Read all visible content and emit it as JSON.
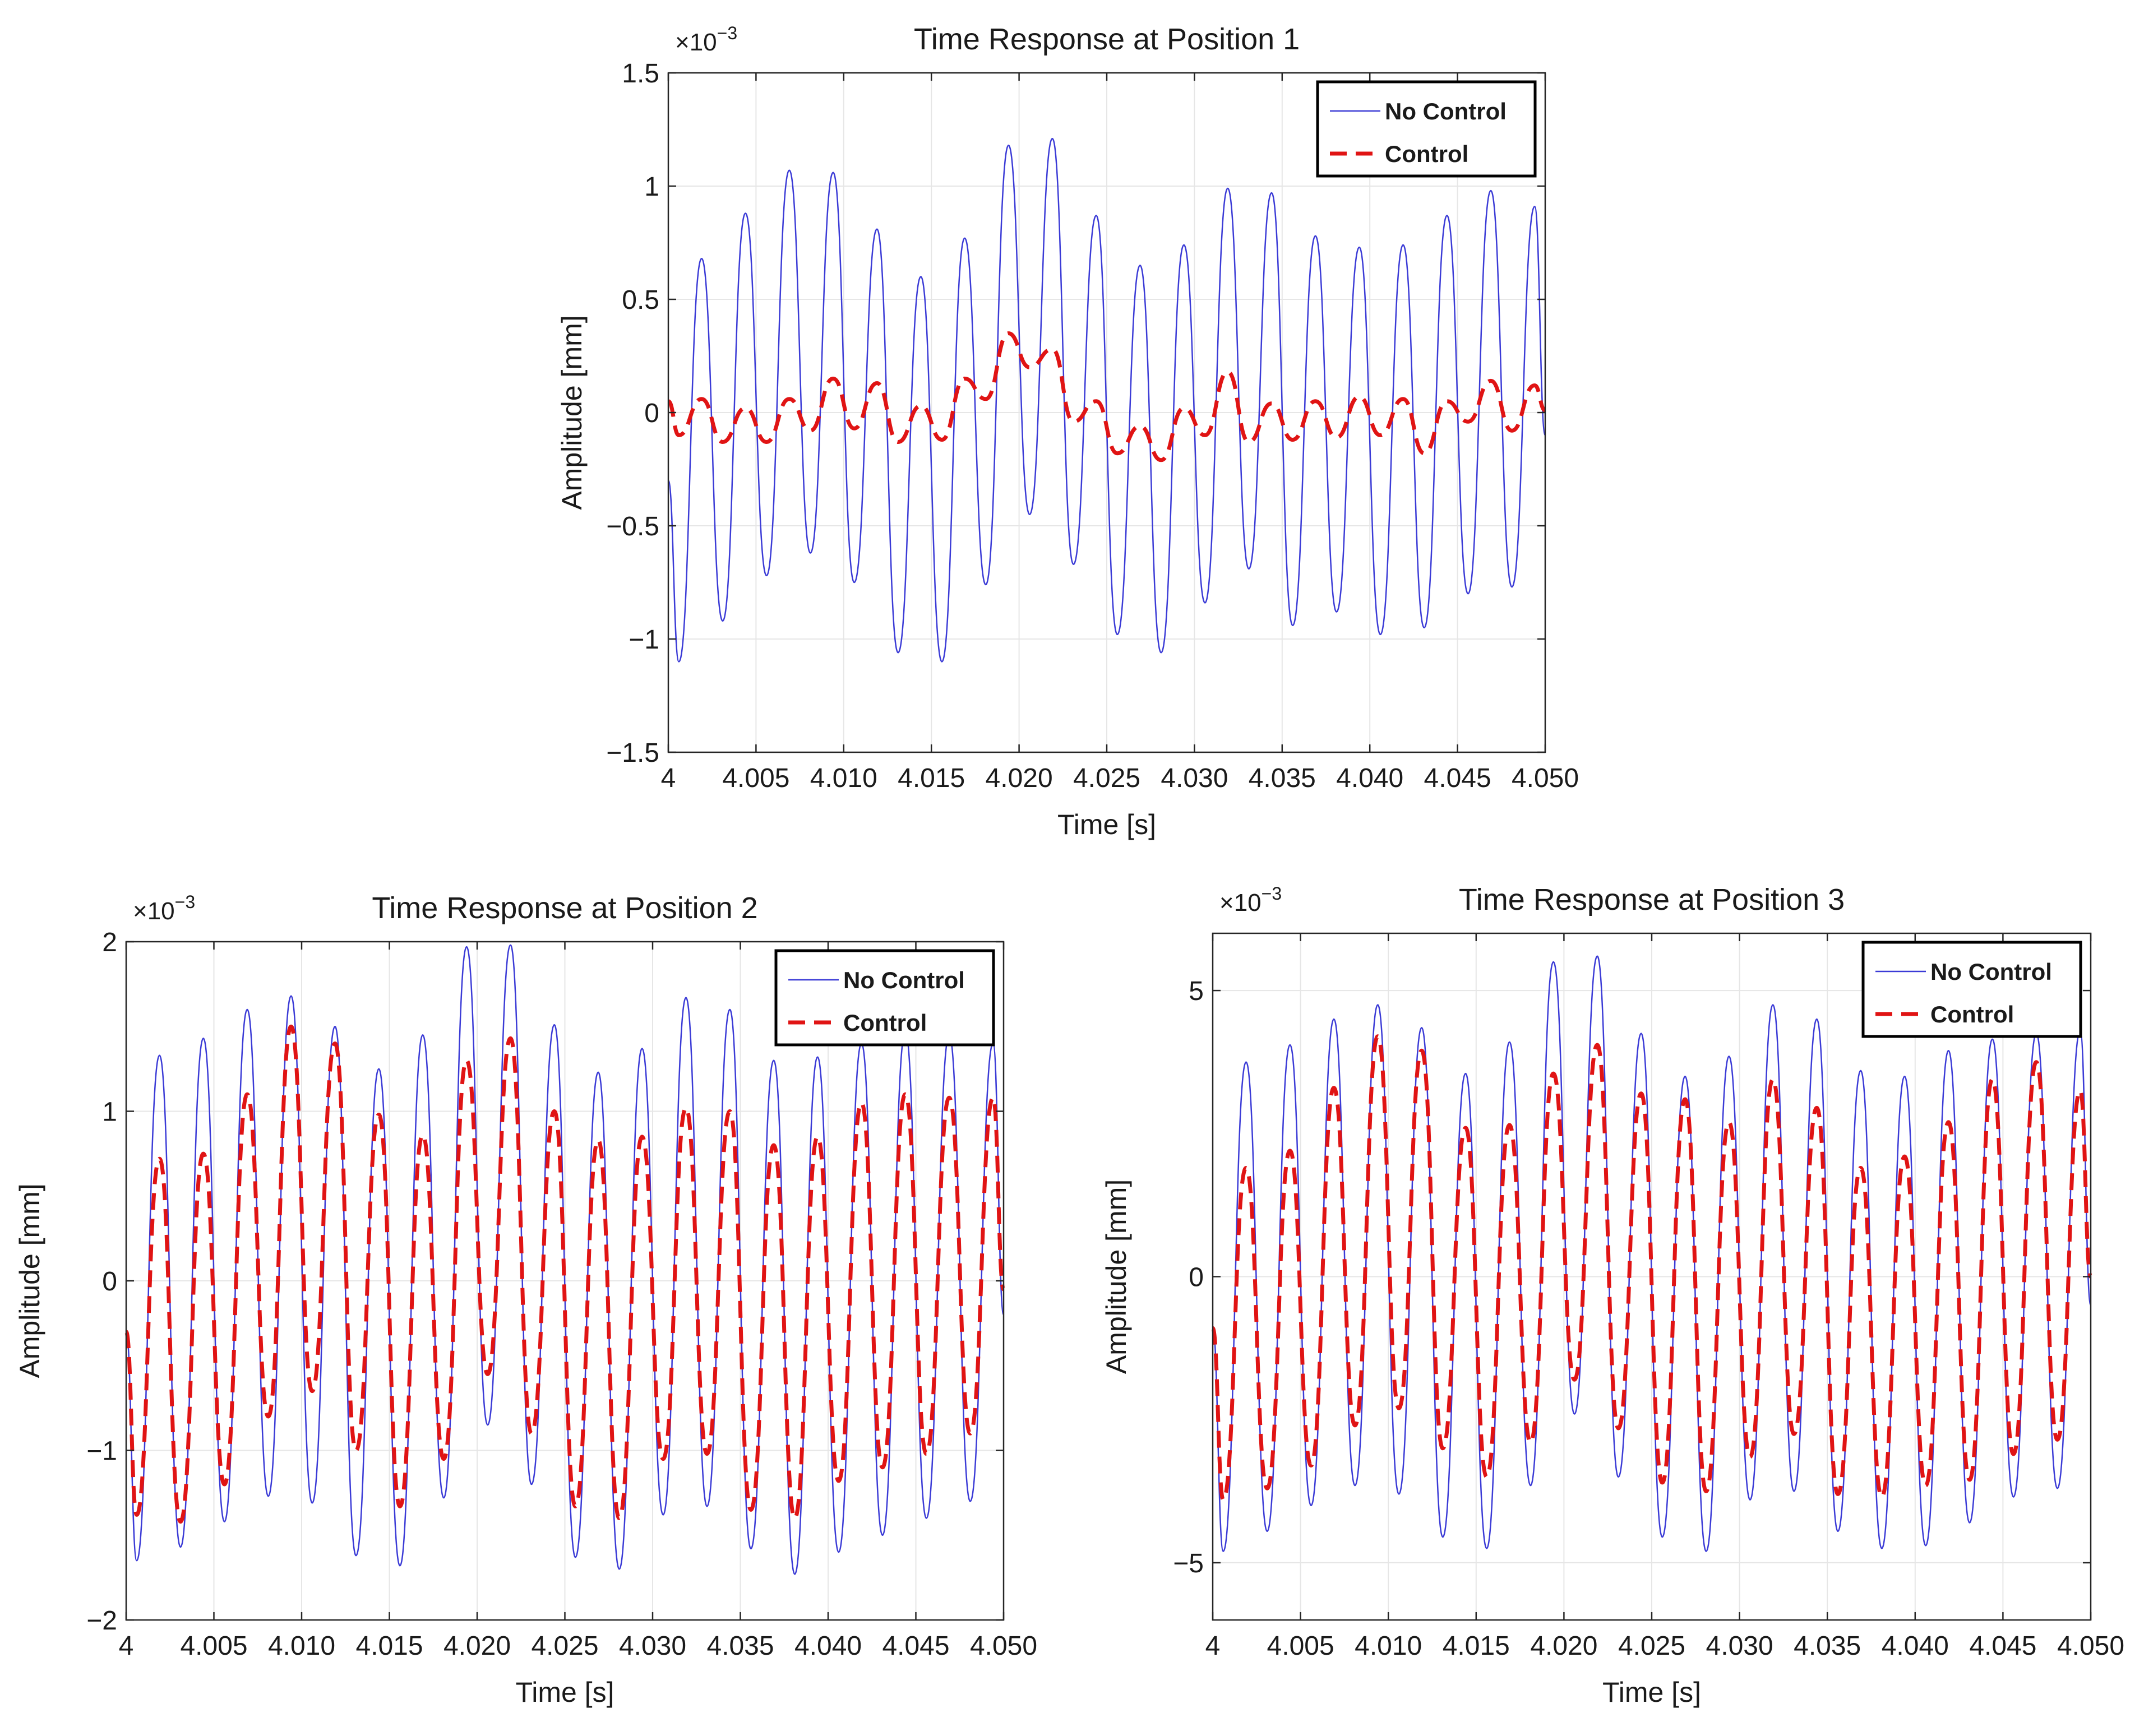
{
  "chart_data": [
    {
      "type": "line",
      "title": "Time Response at Position 1",
      "xlabel": "Time [s]",
      "ylabel": "Amplitude [mm]",
      "multiplier": [
        "×10",
        "−3"
      ],
      "xlim": [
        4,
        4.05
      ],
      "ylim": [
        -1.5,
        1.5
      ],
      "xticks": [
        4,
        4.005,
        4.01,
        4.015,
        4.02,
        4.025,
        4.03,
        4.035,
        4.04,
        4.045,
        4.05
      ],
      "xtick_labels": [
        "4",
        "4.005",
        "4.010",
        "4.015",
        "4.020",
        "4.025",
        "4.030",
        "4.035",
        "4.040",
        "4.045",
        "4.050"
      ],
      "yticks": [
        -1.5,
        -1,
        -0.5,
        0,
        0.5,
        1,
        1.5
      ],
      "ytick_labels": [
        "−1.5",
        "−1",
        "−0.5",
        "0",
        "0.5",
        "1",
        "1.5"
      ],
      "grid": true,
      "legend": [
        "No Control",
        "Control"
      ],
      "legend_position": "top-right",
      "series": [
        {
          "name": "No Control",
          "color": "#3b3bd6",
          "style": "solid",
          "x": [
            4,
            4.0006,
            4.0019,
            4.0031,
            4.0044,
            4.0056,
            4.0069,
            4.0081,
            4.0094,
            4.0106,
            4.0119,
            4.0131,
            4.0144,
            4.0156,
            4.0169,
            4.0181,
            4.0194,
            4.0206,
            4.0219,
            4.0231,
            4.0244,
            4.0256,
            4.0269,
            4.0281,
            4.0294,
            4.0306,
            4.0319,
            4.0331,
            4.0344,
            4.0356,
            4.0369,
            4.0381,
            4.0394,
            4.0406,
            4.0419,
            4.0431,
            4.0444,
            4.0456,
            4.0469,
            4.0481,
            4.0494,
            4.05
          ],
          "y": [
            -0.3,
            -1.1,
            0.68,
            -0.92,
            0.88,
            -0.72,
            1.07,
            -0.62,
            1.06,
            -0.75,
            0.81,
            -1.06,
            0.6,
            -1.1,
            0.77,
            -0.76,
            1.18,
            -0.45,
            1.21,
            -0.67,
            0.87,
            -0.98,
            0.65,
            -1.06,
            0.74,
            -0.84,
            0.99,
            -0.69,
            0.97,
            -0.94,
            0.78,
            -0.88,
            0.73,
            -0.98,
            0.74,
            -0.95,
            0.87,
            -0.8,
            0.98,
            -0.77,
            0.91,
            -0.1
          ]
        },
        {
          "name": "Control",
          "color": "#e01414",
          "style": "dashed",
          "x": [
            4,
            4.0006,
            4.0019,
            4.0031,
            4.0044,
            4.0056,
            4.0069,
            4.0081,
            4.0094,
            4.0106,
            4.0119,
            4.0131,
            4.0144,
            4.0156,
            4.0169,
            4.0181,
            4.0194,
            4.0206,
            4.0219,
            4.0231,
            4.0244,
            4.0256,
            4.0269,
            4.0281,
            4.0294,
            4.0306,
            4.0319,
            4.0331,
            4.0344,
            4.0356,
            4.0369,
            4.0381,
            4.0394,
            4.0406,
            4.0419,
            4.0431,
            4.0444,
            4.0456,
            4.0469,
            4.0481,
            4.0494,
            4.05
          ],
          "y": [
            0.05,
            -0.1,
            0.06,
            -0.13,
            0.02,
            -0.13,
            0.06,
            -0.08,
            0.15,
            -0.07,
            0.13,
            -0.13,
            0.03,
            -0.12,
            0.15,
            0.06,
            0.35,
            0.2,
            0.28,
            -0.04,
            0.05,
            -0.18,
            -0.06,
            -0.21,
            0.02,
            -0.1,
            0.18,
            -0.13,
            0.04,
            -0.12,
            0.05,
            -0.11,
            0.07,
            -0.1,
            0.06,
            -0.18,
            0.05,
            -0.04,
            0.14,
            -0.08,
            0.12,
            0.01
          ]
        }
      ]
    },
    {
      "type": "line",
      "title": "Time Response at Position 2",
      "xlabel": "Time [s]",
      "ylabel": "Amplitude [mm]",
      "multiplier": [
        "×10",
        "−3"
      ],
      "xlim": [
        4,
        4.05
      ],
      "ylim": [
        -2,
        2
      ],
      "xticks": [
        4,
        4.005,
        4.01,
        4.015,
        4.02,
        4.025,
        4.03,
        4.035,
        4.04,
        4.045,
        4.05
      ],
      "xtick_labels": [
        "4",
        "4.005",
        "4.010",
        "4.015",
        "4.020",
        "4.025",
        "4.030",
        "4.035",
        "4.040",
        "4.045",
        "4.050"
      ],
      "yticks": [
        -2,
        -1,
        0,
        1,
        2
      ],
      "ytick_labels": [
        "−2",
        "−1",
        "0",
        "1",
        "2"
      ],
      "grid": true,
      "legend": [
        "No Control",
        "Control"
      ],
      "legend_position": "top-right",
      "series": [
        {
          "name": "No Control",
          "color": "#3b3bd6",
          "style": "solid",
          "x": [
            4,
            4.0006,
            4.0019,
            4.0031,
            4.0044,
            4.0056,
            4.0069,
            4.0081,
            4.0094,
            4.0106,
            4.0119,
            4.0131,
            4.0144,
            4.0156,
            4.0169,
            4.0181,
            4.0194,
            4.0206,
            4.0219,
            4.0231,
            4.0244,
            4.0256,
            4.0269,
            4.0281,
            4.0294,
            4.0306,
            4.0319,
            4.0331,
            4.0344,
            4.0356,
            4.0369,
            4.0381,
            4.0394,
            4.0406,
            4.0419,
            4.0431,
            4.0444,
            4.0456,
            4.0469,
            4.0481,
            4.0494,
            4.05
          ],
          "y": [
            -0.3,
            -1.65,
            1.33,
            -1.57,
            1.43,
            -1.42,
            1.6,
            -1.27,
            1.68,
            -1.31,
            1.5,
            -1.62,
            1.25,
            -1.68,
            1.45,
            -1.28,
            1.97,
            -0.85,
            1.98,
            -1.2,
            1.51,
            -1.63,
            1.23,
            -1.7,
            1.37,
            -1.38,
            1.67,
            -1.33,
            1.6,
            -1.58,
            1.3,
            -1.73,
            1.32,
            -1.6,
            1.4,
            -1.5,
            1.47,
            -1.4,
            1.45,
            -1.3,
            1.4,
            -0.2
          ]
        },
        {
          "name": "Control",
          "color": "#e01414",
          "style": "dashed",
          "x": [
            4,
            4.0006,
            4.0019,
            4.0031,
            4.0044,
            4.0056,
            4.0069,
            4.0081,
            4.0094,
            4.0106,
            4.0119,
            4.0131,
            4.0144,
            4.0156,
            4.0169,
            4.0181,
            4.0194,
            4.0206,
            4.0219,
            4.0231,
            4.0244,
            4.0256,
            4.0269,
            4.0281,
            4.0294,
            4.0306,
            4.0319,
            4.0331,
            4.0344,
            4.0356,
            4.0369,
            4.0381,
            4.0394,
            4.0406,
            4.0419,
            4.0431,
            4.0444,
            4.0456,
            4.0469,
            4.0481,
            4.0494,
            4.05
          ],
          "y": [
            -0.3,
            -1.38,
            0.72,
            -1.42,
            0.75,
            -1.2,
            1.1,
            -0.8,
            1.5,
            -0.65,
            1.4,
            -1.0,
            0.98,
            -1.33,
            0.86,
            -1.05,
            1.3,
            -0.55,
            1.43,
            -0.9,
            1.0,
            -1.33,
            0.83,
            -1.4,
            0.85,
            -1.05,
            1.02,
            -1.02,
            1.0,
            -1.35,
            0.8,
            -1.4,
            0.85,
            -1.18,
            1.05,
            -1.1,
            1.1,
            -1.02,
            1.08,
            -0.9,
            1.08,
            -0.05
          ]
        }
      ]
    },
    {
      "type": "line",
      "title": "Time Response at Position 3",
      "xlabel": "Time [s]",
      "ylabel": "Amplitude [mm]",
      "multiplier": [
        "×10",
        "−3"
      ],
      "xlim": [
        4,
        4.05
      ],
      "ylim": [
        -6,
        6
      ],
      "xticks": [
        4,
        4.005,
        4.01,
        4.015,
        4.02,
        4.025,
        4.03,
        4.035,
        4.04,
        4.045,
        4.05
      ],
      "xtick_labels": [
        "4",
        "4.005",
        "4.010",
        "4.015",
        "4.020",
        "4.025",
        "4.030",
        "4.035",
        "4.040",
        "4.045",
        "4.050"
      ],
      "yticks": [
        -5,
        0,
        5
      ],
      "ytick_labels": [
        "−5",
        "0",
        "5"
      ],
      "grid": true,
      "legend": [
        "No Control",
        "Control"
      ],
      "legend_position": "top-right",
      "series": [
        {
          "name": "No Control",
          "color": "#3b3bd6",
          "style": "solid",
          "x": [
            4,
            4.0006,
            4.0019,
            4.0031,
            4.0044,
            4.0056,
            4.0069,
            4.0081,
            4.0094,
            4.0106,
            4.0119,
            4.0131,
            4.0144,
            4.0156,
            4.0169,
            4.0181,
            4.0194,
            4.0206,
            4.0219,
            4.0231,
            4.0244,
            4.0256,
            4.0269,
            4.0281,
            4.0294,
            4.0306,
            4.0319,
            4.0331,
            4.0344,
            4.0356,
            4.0369,
            4.0381,
            4.0394,
            4.0406,
            4.0419,
            4.0431,
            4.0444,
            4.0456,
            4.0469,
            4.0481,
            4.0494,
            4.05
          ],
          "y": [
            -0.9,
            -4.8,
            3.75,
            -4.45,
            4.05,
            -4.0,
            4.5,
            -3.65,
            4.75,
            -3.8,
            4.35,
            -4.55,
            3.55,
            -4.75,
            4.1,
            -3.65,
            5.5,
            -2.4,
            5.6,
            -3.5,
            4.25,
            -4.55,
            3.5,
            -4.8,
            3.85,
            -3.9,
            4.75,
            -3.75,
            4.5,
            -4.45,
            3.6,
            -4.75,
            3.5,
            -4.7,
            3.95,
            -4.3,
            4.15,
            -3.85,
            4.25,
            -3.7,
            4.3,
            -0.5
          ]
        },
        {
          "name": "Control",
          "color": "#e01414",
          "style": "dashed",
          "x": [
            4,
            4.0006,
            4.0019,
            4.0031,
            4.0044,
            4.0056,
            4.0069,
            4.0081,
            4.0094,
            4.0106,
            4.0119,
            4.0131,
            4.0144,
            4.0156,
            4.0169,
            4.0181,
            4.0194,
            4.0206,
            4.0219,
            4.0231,
            4.0244,
            4.0256,
            4.0269,
            4.0281,
            4.0294,
            4.0306,
            4.0319,
            4.0331,
            4.0344,
            4.0356,
            4.0369,
            4.0381,
            4.0394,
            4.0406,
            4.0419,
            4.0431,
            4.0444,
            4.0456,
            4.0469,
            4.0481,
            4.0494,
            4.05
          ],
          "y": [
            -0.9,
            -3.9,
            1.9,
            -3.7,
            2.2,
            -3.3,
            3.3,
            -2.6,
            4.2,
            -2.3,
            3.95,
            -3.0,
            2.6,
            -3.5,
            2.65,
            -2.9,
            3.55,
            -1.8,
            4.05,
            -2.65,
            3.2,
            -3.6,
            3.1,
            -3.75,
            2.7,
            -3.15,
            3.45,
            -2.75,
            2.95,
            -3.8,
            1.9,
            -3.85,
            2.1,
            -3.65,
            2.7,
            -3.55,
            3.45,
            -3.1,
            3.75,
            -2.85,
            3.25,
            0.0
          ]
        }
      ]
    }
  ]
}
